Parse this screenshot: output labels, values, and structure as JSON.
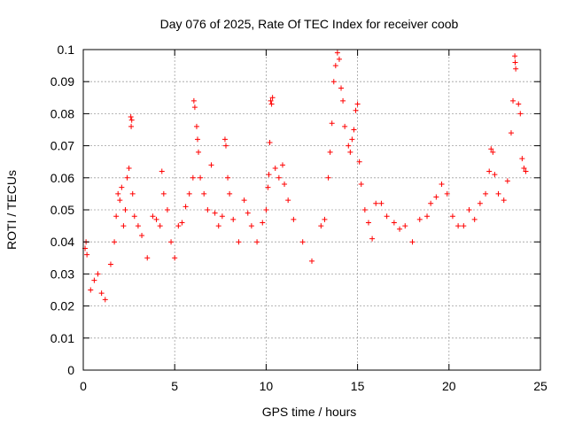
{
  "chart_data": {
    "type": "scatter",
    "title": "Day 076 of 2025, Rate Of TEC Index for receiver coob",
    "xlabel": "GPS time / hours",
    "ylabel": "ROTI / TECUs",
    "xlim": [
      0,
      25
    ],
    "ylim": [
      0,
      0.1
    ],
    "xticks": [
      0,
      5,
      10,
      15,
      20,
      25
    ],
    "yticks": [
      0,
      0.01,
      0.02,
      0.03,
      0.04,
      0.05,
      0.06,
      0.07,
      0.08,
      0.09,
      0.1
    ],
    "grid": true,
    "marker": "+",
    "color": "#ff0000",
    "series": [
      {
        "name": "",
        "points": [
          [
            0.1,
            0.038
          ],
          [
            0.2,
            0.036
          ],
          [
            0.15,
            0.04
          ],
          [
            0.4,
            0.025
          ],
          [
            0.6,
            0.028
          ],
          [
            0.8,
            0.03
          ],
          [
            1.0,
            0.024
          ],
          [
            1.2,
            0.022
          ],
          [
            1.5,
            0.033
          ],
          [
            1.7,
            0.04
          ],
          [
            1.8,
            0.048
          ],
          [
            1.9,
            0.055
          ],
          [
            2.0,
            0.053
          ],
          [
            2.1,
            0.057
          ],
          [
            2.2,
            0.045
          ],
          [
            2.3,
            0.05
          ],
          [
            2.4,
            0.06
          ],
          [
            2.5,
            0.063
          ],
          [
            2.6,
            0.079
          ],
          [
            2.65,
            0.078
          ],
          [
            2.62,
            0.076
          ],
          [
            2.7,
            0.055
          ],
          [
            2.8,
            0.048
          ],
          [
            3.0,
            0.045
          ],
          [
            3.2,
            0.042
          ],
          [
            3.5,
            0.035
          ],
          [
            3.8,
            0.048
          ],
          [
            4.0,
            0.047
          ],
          [
            4.2,
            0.045
          ],
          [
            4.3,
            0.062
          ],
          [
            4.4,
            0.055
          ],
          [
            4.6,
            0.05
          ],
          [
            4.8,
            0.04
          ],
          [
            5.0,
            0.035
          ],
          [
            5.2,
            0.045
          ],
          [
            5.4,
            0.046
          ],
          [
            5.6,
            0.051
          ],
          [
            5.8,
            0.055
          ],
          [
            6.0,
            0.06
          ],
          [
            6.05,
            0.084
          ],
          [
            6.1,
            0.082
          ],
          [
            6.2,
            0.076
          ],
          [
            6.25,
            0.072
          ],
          [
            6.3,
            0.068
          ],
          [
            6.4,
            0.06
          ],
          [
            6.6,
            0.055
          ],
          [
            6.8,
            0.05
          ],
          [
            7.0,
            0.064
          ],
          [
            7.2,
            0.049
          ],
          [
            7.4,
            0.045
          ],
          [
            7.6,
            0.048
          ],
          [
            7.75,
            0.072
          ],
          [
            7.8,
            0.07
          ],
          [
            7.9,
            0.06
          ],
          [
            8.0,
            0.055
          ],
          [
            8.2,
            0.047
          ],
          [
            8.5,
            0.04
          ],
          [
            8.8,
            0.053
          ],
          [
            9.0,
            0.049
          ],
          [
            9.2,
            0.045
          ],
          [
            9.5,
            0.04
          ],
          [
            9.8,
            0.046
          ],
          [
            10.0,
            0.05
          ],
          [
            10.1,
            0.057
          ],
          [
            10.15,
            0.061
          ],
          [
            10.2,
            0.071
          ],
          [
            10.25,
            0.084
          ],
          [
            10.3,
            0.083
          ],
          [
            10.35,
            0.085
          ],
          [
            10.5,
            0.063
          ],
          [
            10.7,
            0.06
          ],
          [
            10.9,
            0.064
          ],
          [
            11.0,
            0.058
          ],
          [
            11.2,
            0.053
          ],
          [
            11.5,
            0.047
          ],
          [
            12.0,
            0.04
          ],
          [
            12.5,
            0.034
          ],
          [
            13.0,
            0.045
          ],
          [
            13.2,
            0.047
          ],
          [
            13.4,
            0.06
          ],
          [
            13.5,
            0.068
          ],
          [
            13.6,
            0.077
          ],
          [
            13.7,
            0.09
          ],
          [
            13.8,
            0.095
          ],
          [
            13.9,
            0.099
          ],
          [
            14.0,
            0.097
          ],
          [
            14.1,
            0.088
          ],
          [
            14.2,
            0.084
          ],
          [
            14.3,
            0.076
          ],
          [
            14.5,
            0.07
          ],
          [
            14.6,
            0.068
          ],
          [
            14.7,
            0.072
          ],
          [
            14.8,
            0.075
          ],
          [
            14.9,
            0.081
          ],
          [
            15.0,
            0.083
          ],
          [
            15.1,
            0.065
          ],
          [
            15.2,
            0.058
          ],
          [
            15.4,
            0.05
          ],
          [
            15.6,
            0.046
          ],
          [
            15.8,
            0.041
          ],
          [
            16.0,
            0.052
          ],
          [
            16.3,
            0.052
          ],
          [
            16.6,
            0.048
          ],
          [
            17.0,
            0.046
          ],
          [
            17.3,
            0.044
          ],
          [
            17.6,
            0.045
          ],
          [
            18.0,
            0.04
          ],
          [
            18.4,
            0.047
          ],
          [
            18.8,
            0.048
          ],
          [
            19.0,
            0.052
          ],
          [
            19.3,
            0.054
          ],
          [
            19.6,
            0.058
          ],
          [
            19.9,
            0.055
          ],
          [
            20.2,
            0.048
          ],
          [
            20.5,
            0.045
          ],
          [
            20.8,
            0.045
          ],
          [
            21.1,
            0.05
          ],
          [
            21.4,
            0.047
          ],
          [
            21.7,
            0.052
          ],
          [
            22.0,
            0.055
          ],
          [
            22.2,
            0.062
          ],
          [
            22.3,
            0.069
          ],
          [
            22.4,
            0.068
          ],
          [
            22.5,
            0.061
          ],
          [
            22.7,
            0.055
          ],
          [
            23.0,
            0.053
          ],
          [
            23.2,
            0.059
          ],
          [
            23.4,
            0.074
          ],
          [
            23.5,
            0.084
          ],
          [
            23.6,
            0.098
          ],
          [
            23.62,
            0.096
          ],
          [
            23.65,
            0.094
          ],
          [
            23.8,
            0.083
          ],
          [
            23.9,
            0.08
          ],
          [
            24.0,
            0.066
          ],
          [
            24.1,
            0.063
          ],
          [
            24.2,
            0.062
          ]
        ]
      }
    ]
  }
}
